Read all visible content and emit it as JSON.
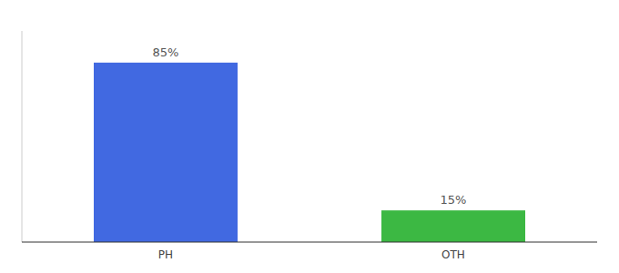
{
  "chart_data": {
    "type": "bar",
    "categories": [
      "PH",
      "OTH"
    ],
    "values": [
      85,
      15
    ],
    "value_labels": [
      "85%",
      "15%"
    ],
    "colors": [
      "#4169e1",
      "#3cb843"
    ],
    "ylim": [
      0,
      100
    ],
    "data_labels": true,
    "tick_labels": "x",
    "grid": false
  }
}
